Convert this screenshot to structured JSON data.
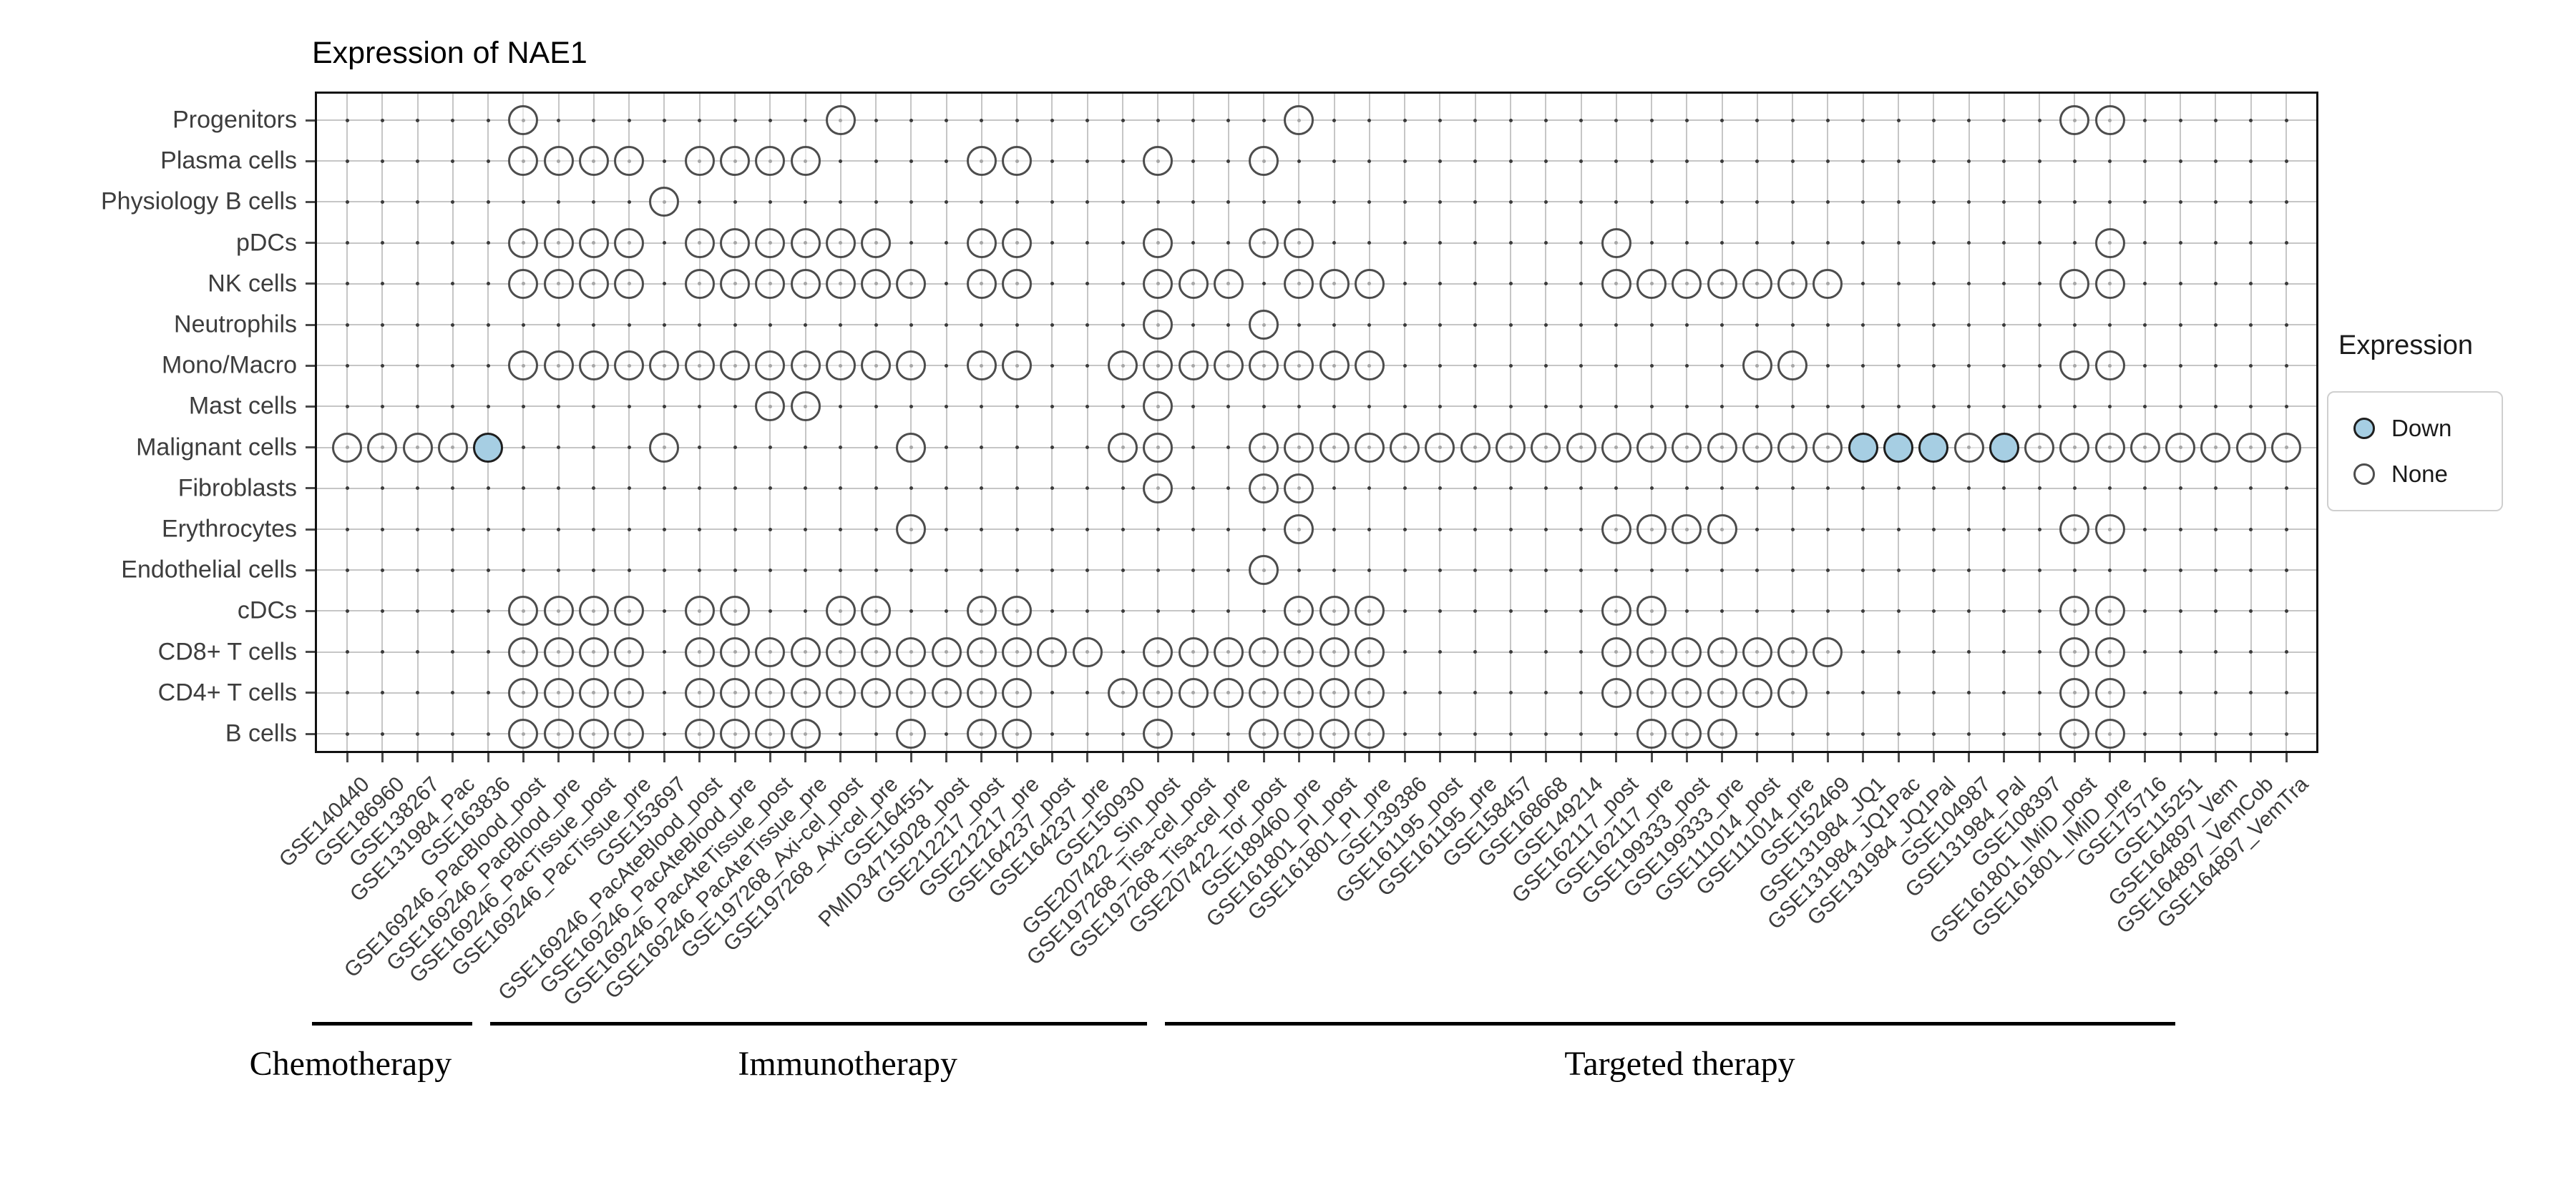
{
  "title": "Expression of NAE1",
  "legend": {
    "title": "Expression",
    "items": [
      {
        "label": "Down",
        "color": "#a6cee3",
        "stroke": "#1f1f1f"
      },
      {
        "label": "None",
        "color": "#ffffff",
        "stroke": "#4d4d4d"
      }
    ]
  },
  "therapy_groups": [
    {
      "label": "Chemotherapy",
      "bracket_start_col": 0.0,
      "bracket_end_col": 4.55,
      "label_center_col": 1.1
    },
    {
      "label": "Immunotherapy",
      "bracket_start_col": 5.05,
      "bracket_end_col": 23.7,
      "label_center_col": 15.2
    },
    {
      "label": "Targeted therapy",
      "bracket_start_col": 24.2,
      "bracket_end_col": 52.85,
      "label_center_col": 38.8
    }
  ],
  "chart_data": {
    "type": "heatmap",
    "title": "Expression of NAE1",
    "xlabel": "",
    "ylabel": "",
    "legend_position": "right",
    "grid": true,
    "states": [
      "down",
      "none"
    ],
    "x_categories": [
      "GSE140440",
      "GSE186960",
      "GSE138267",
      "GSE131984_Pac",
      "GSE163836",
      "GSE169246_PacBlood_post",
      "GSE169246_PacBlood_pre",
      "GSE169246_PacTissue_post",
      "GSE169246_PacTissue_pre",
      "GSE153697",
      "GSE169246_PacAteBlood_post",
      "GSE169246_PacAteBlood_pre",
      "GSE169246_PacAteTissue_post",
      "GSE169246_PacAteTissue_pre",
      "GSE197268_Axi-cel_post",
      "GSE197268_Axi-cel_pre",
      "GSE164551",
      "PMID34715028_post",
      "GSE212217_post",
      "GSE212217_pre",
      "GSE164237_post",
      "GSE164237_pre",
      "GSE150930",
      "GSE207422_Sin_post",
      "GSE197268_Tisa-cel_post",
      "GSE197268_Tisa-cel_pre",
      "GSE207422_Tor_post",
      "GSE189460_pre",
      "GSE161801_PI_post",
      "GSE161801_PI_pre",
      "GSE139386",
      "GSE161195_post",
      "GSE161195_pre",
      "GSE158457",
      "GSE168668",
      "GSE149214",
      "GSE162117_post",
      "GSE162117_pre",
      "GSE199333_post",
      "GSE199333_pre",
      "GSE111014_post",
      "GSE111014_pre",
      "GSE152469",
      "GSE131984_JQ1",
      "GSE131984_JQ1Pac",
      "GSE131984_JQ1Pal",
      "GSE104987",
      "GSE131984_Pal",
      "GSE108397",
      "GSE161801_IMiD_post",
      "GSE161801_IMiD_pre",
      "GSE175716",
      "GSE115251",
      "GSE164897_Vem",
      "GSE164897_VemCob",
      "GSE164897_VemTra"
    ],
    "y_categories": [
      "Progenitors",
      "Plasma cells",
      "Physiology B cells",
      "pDCs",
      "NK cells",
      "Neutrophils",
      "Mono/Macro",
      "Mast cells",
      "Malignant cells",
      "Fibroblasts",
      "Erythrocytes",
      "Endothelial cells",
      "cDCs",
      "CD8+ T cells",
      "CD4+ T cells",
      "B cells"
    ],
    "rows": [
      {
        "y": "Progenitors",
        "none": [
          6,
          15,
          28,
          50,
          51
        ],
        "down": []
      },
      {
        "y": "Plasma cells",
        "none": [
          6,
          7,
          8,
          9,
          11,
          12,
          13,
          14,
          19,
          20,
          24,
          27
        ],
        "down": []
      },
      {
        "y": "Physiology B cells",
        "none": [
          10
        ],
        "down": []
      },
      {
        "y": "pDCs",
        "none": [
          6,
          7,
          8,
          9,
          11,
          12,
          13,
          14,
          15,
          16,
          19,
          20,
          24,
          27,
          28,
          37,
          51
        ],
        "down": []
      },
      {
        "y": "NK cells",
        "none": [
          6,
          7,
          8,
          9,
          11,
          12,
          13,
          14,
          15,
          16,
          17,
          19,
          20,
          24,
          25,
          26,
          28,
          29,
          30,
          37,
          38,
          39,
          40,
          41,
          42,
          43,
          50,
          51
        ],
        "down": []
      },
      {
        "y": "Neutrophils",
        "none": [
          24,
          27
        ],
        "down": []
      },
      {
        "y": "Mono/Macro",
        "none": [
          6,
          7,
          8,
          9,
          10,
          11,
          12,
          13,
          14,
          15,
          16,
          17,
          19,
          20,
          23,
          24,
          25,
          26,
          27,
          28,
          29,
          30,
          41,
          42,
          50,
          51
        ],
        "down": []
      },
      {
        "y": "Mast cells",
        "none": [
          13,
          14,
          24
        ],
        "down": []
      },
      {
        "y": "Malignant cells",
        "none": [
          1,
          2,
          3,
          4,
          10,
          17,
          23,
          24,
          27,
          28,
          29,
          30,
          31,
          32,
          33,
          34,
          35,
          36,
          37,
          38,
          39,
          40,
          41,
          42,
          43,
          47,
          49,
          50,
          51,
          52,
          53,
          54,
          55,
          56
        ],
        "down": [
          5,
          44,
          45,
          46,
          48
        ]
      },
      {
        "y": "Fibroblasts",
        "none": [
          24,
          27,
          28
        ],
        "down": []
      },
      {
        "y": "Erythrocytes",
        "none": [
          17,
          28,
          37,
          38,
          39,
          40,
          50,
          51
        ],
        "down": []
      },
      {
        "y": "Endothelial cells",
        "none": [
          27
        ],
        "down": []
      },
      {
        "y": "cDCs",
        "none": [
          6,
          7,
          8,
          9,
          11,
          12,
          15,
          16,
          19,
          20,
          28,
          29,
          30,
          37,
          38,
          50,
          51
        ],
        "down": []
      },
      {
        "y": "CD8+ T cells",
        "none": [
          6,
          7,
          8,
          9,
          11,
          12,
          13,
          14,
          15,
          16,
          17,
          18,
          19,
          20,
          21,
          22,
          24,
          25,
          26,
          27,
          28,
          29,
          30,
          37,
          38,
          39,
          40,
          41,
          42,
          43,
          50,
          51
        ],
        "down": []
      },
      {
        "y": "CD4+ T cells",
        "none": [
          6,
          7,
          8,
          9,
          11,
          12,
          13,
          14,
          15,
          16,
          17,
          18,
          19,
          20,
          23,
          24,
          25,
          26,
          27,
          28,
          29,
          30,
          37,
          38,
          39,
          40,
          41,
          42,
          50,
          51
        ],
        "down": []
      },
      {
        "y": "B cells",
        "none": [
          6,
          7,
          8,
          9,
          11,
          12,
          13,
          14,
          17,
          19,
          20,
          24,
          27,
          28,
          29,
          30,
          38,
          39,
          40,
          50,
          51
        ],
        "down": []
      }
    ]
  }
}
